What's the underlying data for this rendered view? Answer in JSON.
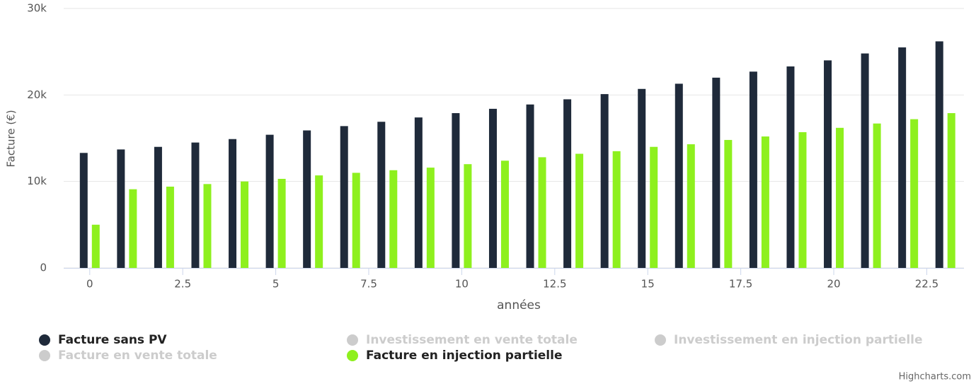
{
  "chart_data": {
    "type": "column",
    "y_label": "Facture (€)",
    "x_label": "années",
    "x": [
      0,
      1,
      2,
      3,
      4,
      5,
      6,
      7,
      8,
      9,
      10,
      11,
      12,
      13,
      14,
      15,
      16,
      17,
      18,
      19,
      20,
      21,
      22,
      23
    ],
    "series": [
      {
        "name": "Facture sans PV",
        "color": "#1f2a3a",
        "visible": true,
        "values": [
          13300,
          13700,
          14000,
          14500,
          14900,
          15400,
          15900,
          16400,
          16900,
          17400,
          17900,
          18400,
          18900,
          19500,
          20100,
          20700,
          21300,
          22000,
          22700,
          23300,
          24000,
          24800,
          25500,
          26200
        ]
      },
      {
        "name": "Investissement en vente totale",
        "color": "#cccccc",
        "visible": false
      },
      {
        "name": "Investissement en injection partielle",
        "color": "#cccccc",
        "visible": false
      },
      {
        "name": "Facture en vente totale",
        "color": "#cccccc",
        "visible": false
      },
      {
        "name": "Facture en injection partielle",
        "color": "#8ef01e",
        "visible": true,
        "values": [
          5000,
          9100,
          9400,
          9700,
          10000,
          10300,
          10700,
          11000,
          11300,
          11600,
          12000,
          12400,
          12800,
          13200,
          13500,
          14000,
          14300,
          14800,
          15200,
          15700,
          16200,
          16700,
          17200,
          17900
        ]
      }
    ],
    "xlim": [
      -0.7,
      23.5
    ],
    "xticks": [
      0,
      2.5,
      5,
      7.5,
      10,
      12.5,
      15,
      17.5,
      20,
      22.5
    ],
    "ylim": [
      0,
      30000
    ],
    "yticks": [
      0,
      {
        "value": 10000,
        "label": "10k"
      },
      {
        "value": 20000,
        "label": "20k"
      },
      {
        "value": 30000,
        "label": "30k"
      }
    ],
    "grid": true,
    "credits": "Highcharts.com"
  }
}
